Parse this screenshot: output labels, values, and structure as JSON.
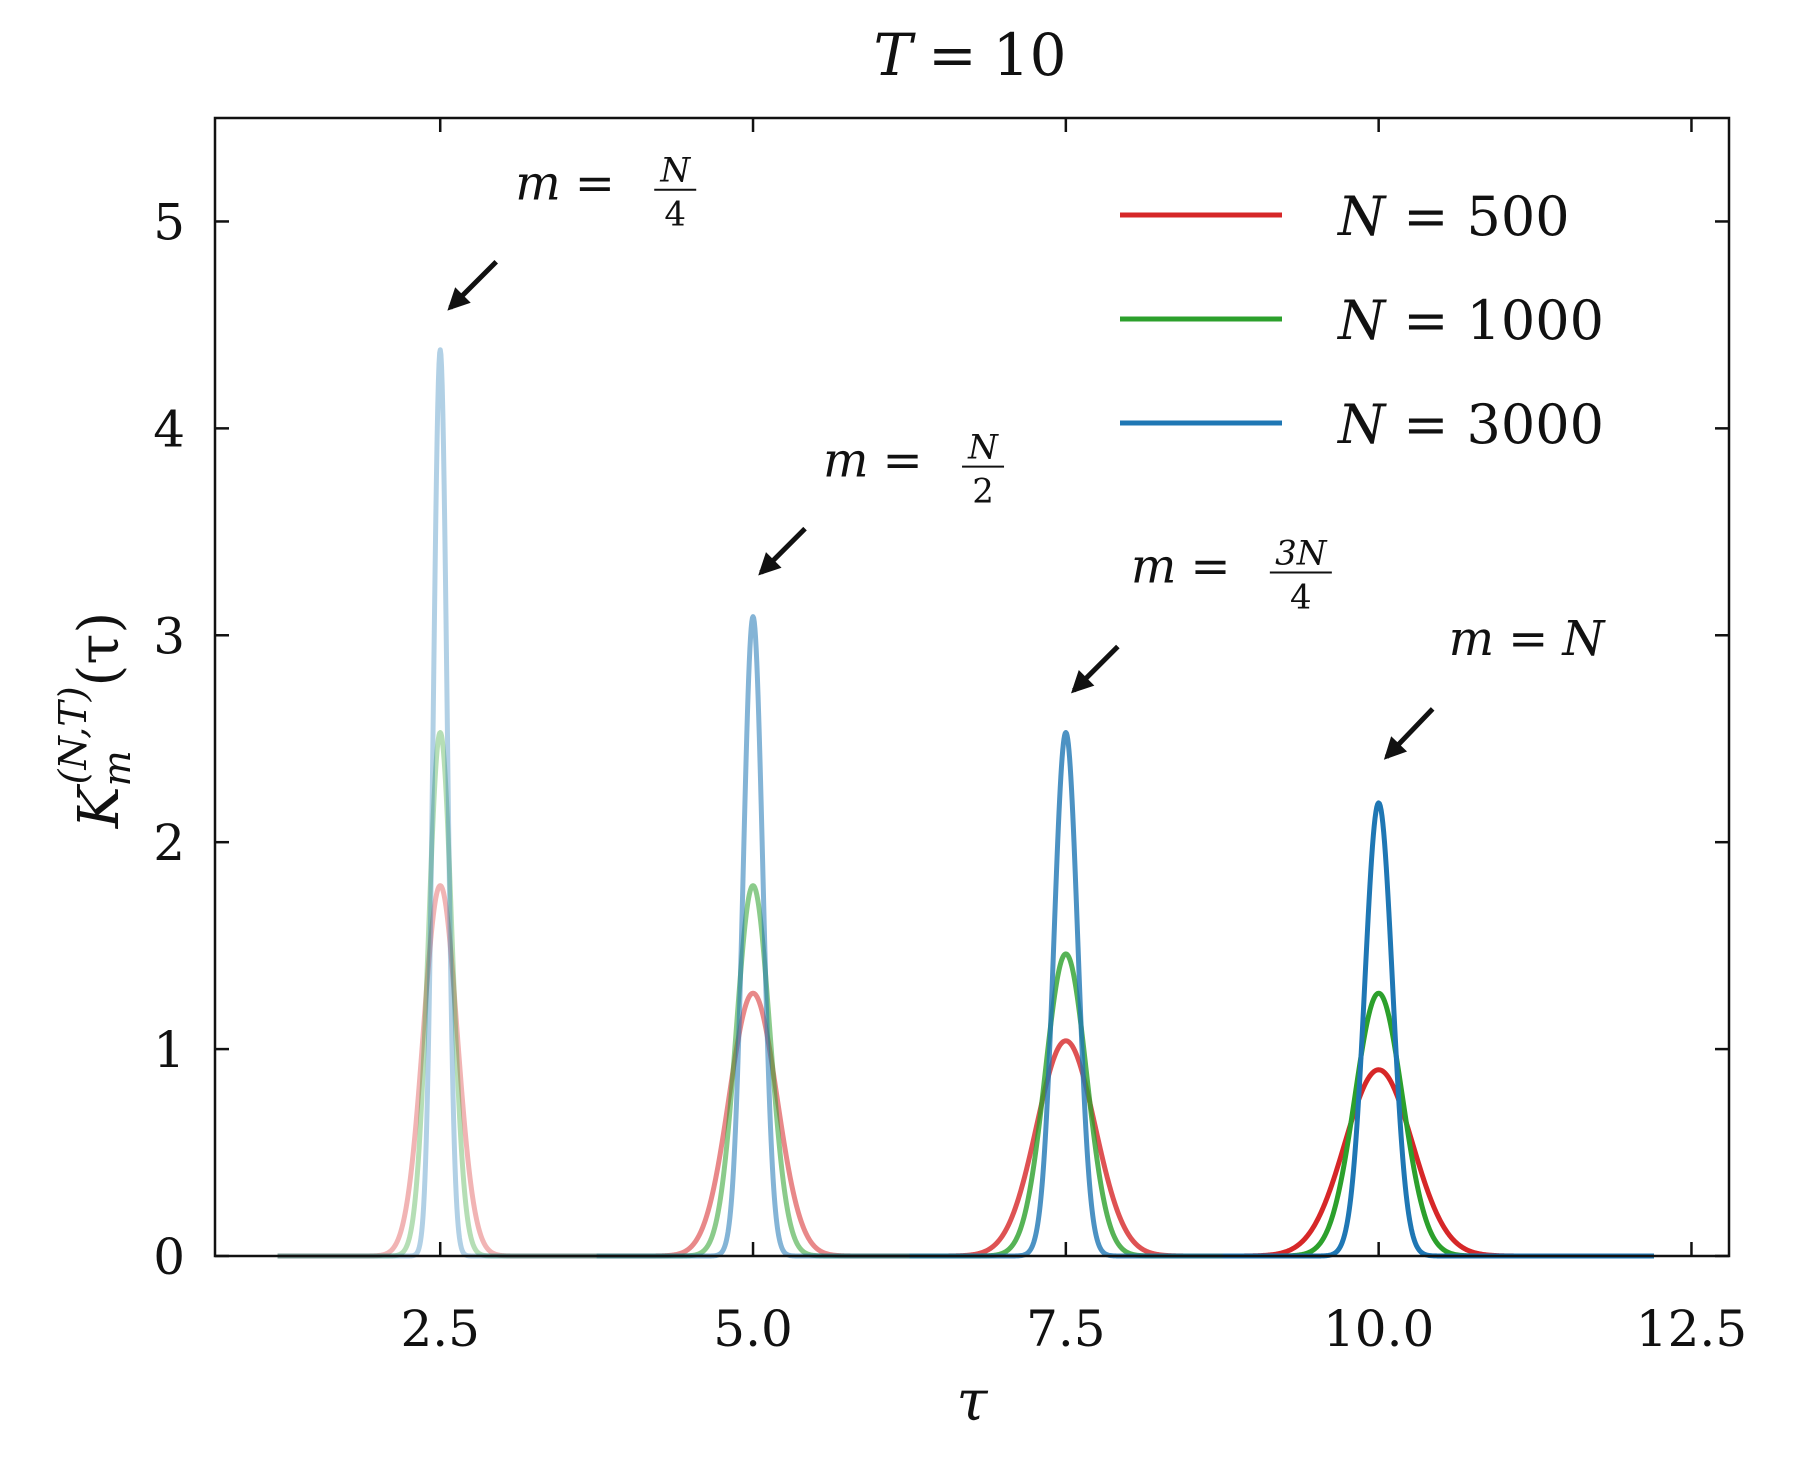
{
  "chart_data": {
    "type": "line",
    "title": "T = 10",
    "title_parts": {
      "var": "T",
      "eq": "=",
      "val": "10"
    },
    "xlabel": "τ",
    "ylabel": {
      "main": "K",
      "sub": "m",
      "sup": "(N,T)",
      "arg": "(τ)"
    },
    "xlim": [
      0.7,
      12.8
    ],
    "ylim": [
      0,
      5.5
    ],
    "xticks": [
      2.5,
      5.0,
      7.5,
      10.0,
      12.5
    ],
    "xtick_labels": [
      "2.5",
      "5.0",
      "7.5",
      "10.0",
      "12.5"
    ],
    "yticks": [
      0,
      1,
      2,
      3,
      4,
      5
    ],
    "ytick_labels": [
      "0",
      "1",
      "2",
      "3",
      "4",
      "5"
    ],
    "tau_range": [
      1.2,
      12.2
    ],
    "grid": false,
    "legend_position": "top-right",
    "series": [
      {
        "name": "N = 500",
        "label_var": "N",
        "label_eq": "=",
        "label_val": "500",
        "color": "#d62728",
        "peak_heights": [
          1.79,
          1.27,
          1.04,
          0.9
        ],
        "peak_widths": [
          0.135,
          0.191,
          0.233,
          0.27
        ]
      },
      {
        "name": "N = 1000",
        "label_var": "N",
        "label_eq": "=",
        "label_val": "1000",
        "color": "#2ca02c",
        "peak_heights": [
          2.53,
          1.79,
          1.46,
          1.27
        ],
        "peak_widths": [
          0.095,
          0.135,
          0.165,
          0.19
        ]
      },
      {
        "name": "N = 3000",
        "label_var": "N",
        "label_eq": "=",
        "label_val": "3000",
        "color": "#1f77b4",
        "peak_heights": [
          4.38,
          3.09,
          2.53,
          2.19
        ],
        "peak_widths": [
          0.055,
          0.078,
          0.095,
          0.11
        ]
      }
    ],
    "peaks": [
      {
        "m_num": "N",
        "m_den": "4",
        "tau": 2.5
      },
      {
        "m_num": "N",
        "m_den": "2",
        "tau": 5.0
      },
      {
        "m_num": "3N",
        "m_den": "4",
        "tau": 7.5
      },
      {
        "m_label": "N",
        "tau": 10.0
      }
    ],
    "peak_opacity": [
      0.35,
      0.55,
      0.8,
      1.0
    ],
    "annotations": {
      "m": "m",
      "eq": "="
    }
  }
}
